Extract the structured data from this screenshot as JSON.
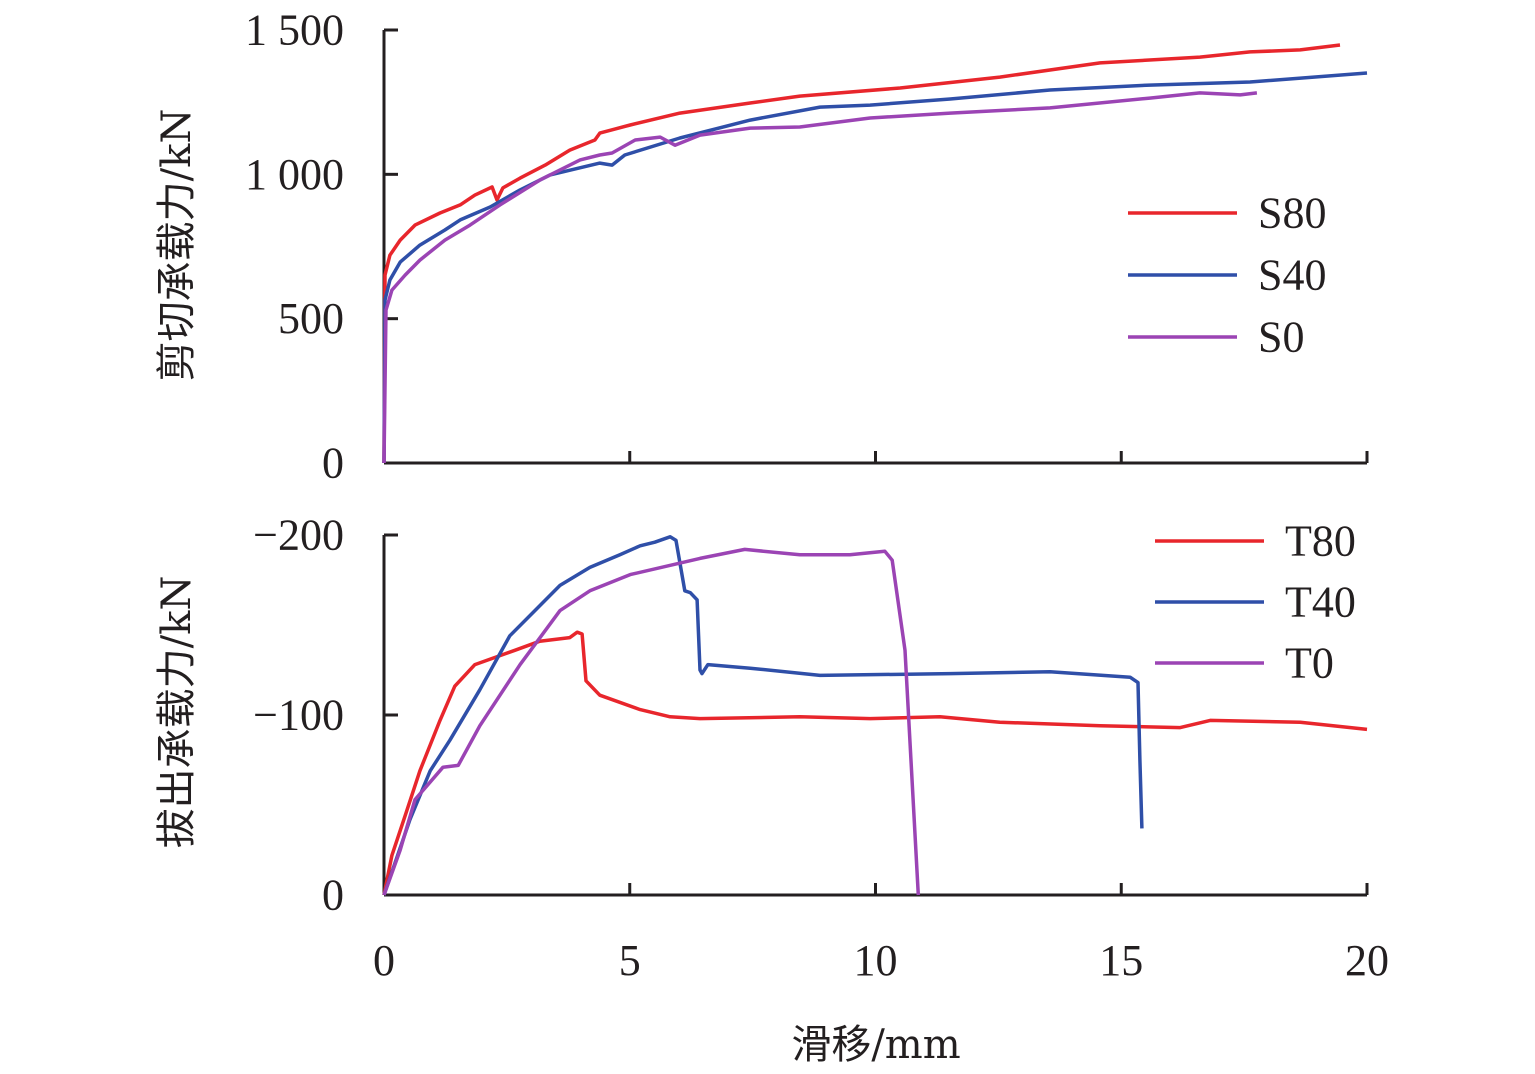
{
  "chart_data": [
    {
      "type": "line",
      "panel": "top",
      "title": "",
      "xlabel": "滑移/mm",
      "ylabel": "剪切承载力/kN",
      "xlim": [
        0,
        20
      ],
      "ylim": [
        0,
        1500
      ],
      "xticks": [
        0,
        5,
        10,
        15,
        20
      ],
      "yticks": [
        0,
        500,
        1000,
        1500
      ],
      "ytick_labels": [
        "0",
        "500",
        "1 000",
        "1 500"
      ],
      "grid": false,
      "legend_position": "right",
      "series": [
        {
          "name": "S80",
          "color": "#e8262c",
          "x": [
            0,
            0.02,
            0.12,
            0.33,
            0.63,
            1.14,
            1.55,
            1.85,
            2.2,
            2.3,
            2.42,
            2.77,
            3.28,
            3.78,
            4.29,
            4.39,
            5.01,
            6.02,
            7.45,
            8.46,
            10.5,
            12.53,
            14.57,
            16.6,
            17.62,
            18.64,
            19.45
          ],
          "y": [
            0,
            651,
            720,
            772,
            824,
            866,
            894,
            928,
            956,
            911,
            953,
            987,
            1032,
            1084,
            1119,
            1143,
            1171,
            1212,
            1247,
            1271,
            1299,
            1337,
            1386,
            1406,
            1424,
            1431,
            1448
          ]
        },
        {
          "name": "S40",
          "color": "#2f4fa8",
          "x": [
            0,
            0.02,
            0.12,
            0.33,
            0.73,
            1.24,
            1.55,
            2.16,
            2.77,
            3.38,
            4.39,
            4.64,
            4.9,
            6.02,
            7.45,
            8.87,
            9.89,
            11.52,
            13.55,
            15.58,
            17.62,
            20
          ],
          "y": [
            0,
            565,
            634,
            696,
            755,
            807,
            842,
            887,
            946,
            998,
            1039,
            1032,
            1067,
            1126,
            1188,
            1233,
            1240,
            1261,
            1292,
            1309,
            1320,
            1351
          ]
        },
        {
          "name": "S0",
          "color": "#9b44b4",
          "x": [
            0,
            0.04,
            0.16,
            0.43,
            0.73,
            1.24,
            1.75,
            2.36,
            3.17,
            3.99,
            4.39,
            4.64,
            5.11,
            5.62,
            5.92,
            6.43,
            7.45,
            8.46,
            9.89,
            11.52,
            13.55,
            15.58,
            16.6,
            17.42,
            17.76
          ],
          "y": [
            0,
            530,
            599,
            651,
            703,
            772,
            824,
            894,
            980,
            1050,
            1067,
            1074,
            1119,
            1129,
            1101,
            1136,
            1160,
            1164,
            1195,
            1212,
            1230,
            1264,
            1282,
            1275,
            1282
          ]
        }
      ]
    },
    {
      "type": "line",
      "panel": "bottom",
      "title": "",
      "xlabel": "滑移/mm",
      "ylabel": "拔出承载力/kN",
      "xlim": [
        0,
        20
      ],
      "ylim": [
        0,
        -200
      ],
      "xticks": [
        0,
        5,
        10,
        15,
        20
      ],
      "xtick_labels": [
        "0",
        "5",
        "10",
        "15",
        "20"
      ],
      "yticks": [
        0,
        -100,
        -200
      ],
      "ytick_labels": [
        "0",
        "−100",
        "−200"
      ],
      "grid": false,
      "legend_position": "top-right",
      "series": [
        {
          "name": "T80",
          "color": "#e8262c",
          "x": [
            0,
            0.16,
            0.43,
            0.73,
            1.14,
            1.44,
            1.85,
            2.36,
            2.67,
            3.17,
            3.78,
            3.93,
            4.03,
            4.11,
            4.39,
            5.21,
            5.82,
            6.43,
            8.46,
            9.89,
            11.31,
            12.53,
            14.57,
            16.2,
            16.81,
            18.64,
            20
          ],
          "y": [
            0,
            -22,
            -44,
            -69,
            -97,
            -116,
            -128,
            -133,
            -136,
            -141,
            -143,
            -146,
            -145,
            -119,
            -111,
            -103,
            -99,
            -98,
            -99,
            -98,
            -99,
            -96,
            -94,
            -93,
            -97,
            -96,
            -92
          ]
        },
        {
          "name": "T40",
          "color": "#2f4fa8",
          "x": [
            0,
            0.53,
            0.94,
            1.34,
            1.95,
            2.56,
            3.07,
            3.58,
            4.19,
            4.8,
            5.21,
            5.51,
            5.82,
            5.94,
            6.12,
            6.23,
            6.37,
            6.43,
            6.47,
            6.59,
            7.45,
            8.87,
            11.52,
            13.55,
            15.18,
            15.34,
            15.38,
            15.42
          ],
          "y": [
            0,
            -42,
            -69,
            -86,
            -114,
            -144,
            -158,
            -172,
            -182,
            -189,
            -194,
            -196,
            -199,
            -197,
            -169,
            -168,
            -164,
            -125,
            -123,
            -128,
            -126,
            -122,
            -123,
            -124,
            -121,
            -118,
            -75,
            -37
          ]
        },
        {
          "name": "T0",
          "color": "#9b44b4",
          "x": [
            0,
            0.33,
            0.63,
            1.2,
            1.51,
            1.95,
            2.77,
            3.58,
            4.19,
            5.01,
            6.43,
            7.34,
            8.46,
            9.48,
            10.19,
            10.34,
            10.6,
            10.87
          ],
          "y": [
            0,
            -25,
            -53,
            -71,
            -72,
            -94,
            -128,
            -158,
            -169,
            -178,
            -187,
            -192,
            -189,
            -189,
            -191,
            -186,
            -136,
            0
          ]
        }
      ]
    }
  ]
}
